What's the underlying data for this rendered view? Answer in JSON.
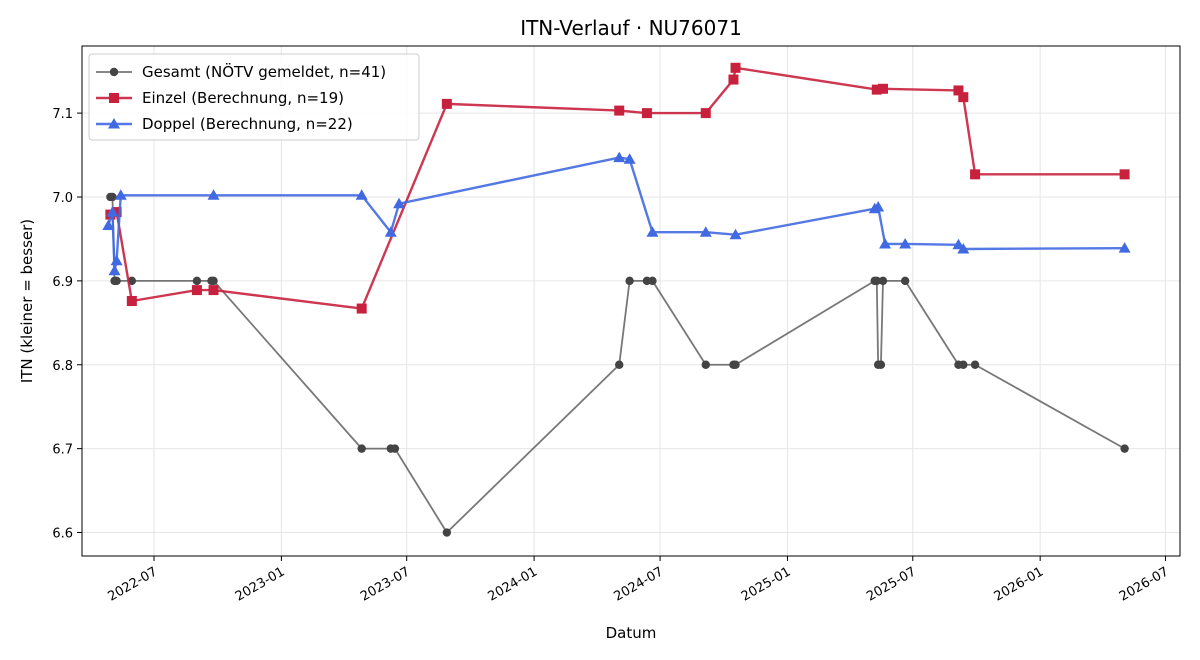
{
  "chart_data": {
    "type": "line",
    "title": "ITN-Verlauf · NU76071",
    "xlabel": "Datum",
    "ylabel": "ITN  (kleiner = besser)",
    "x_axis_type": "date",
    "xlim": [
      "2022-03-19",
      "2026-07-22"
    ],
    "ylim": [
      6.572,
      7.18
    ],
    "grid": true,
    "legend_position": "top-left",
    "x_ticks": [
      "2022-07",
      "2023-01",
      "2023-07",
      "2024-01",
      "2024-07",
      "2025-01",
      "2025-07",
      "2026-01",
      "2026-07"
    ],
    "y_ticks": [
      6.6,
      6.7,
      6.8,
      6.9,
      7.0,
      7.1
    ],
    "series": [
      {
        "name": "Gesamt (NÖTV gemeldet, n=41)",
        "color": "#444444",
        "marker": "circle",
        "points": [
          [
            "2022-04-29",
            7.0
          ],
          [
            "2022-05-02",
            7.0
          ],
          [
            "2022-05-05",
            6.9
          ],
          [
            "2022-05-08",
            6.9
          ],
          [
            "2022-05-30",
            6.9
          ],
          [
            "2022-09-01",
            6.9
          ],
          [
            "2022-09-22",
            6.9
          ],
          [
            "2022-09-25",
            6.9
          ],
          [
            "2023-04-27",
            6.7
          ],
          [
            "2023-06-08",
            6.7
          ],
          [
            "2023-06-14",
            6.7
          ],
          [
            "2023-08-28",
            6.6
          ],
          [
            "2024-05-03",
            6.8
          ],
          [
            "2024-05-18",
            6.9
          ],
          [
            "2024-06-12",
            6.9
          ],
          [
            "2024-06-20",
            6.9
          ],
          [
            "2024-09-05",
            6.8
          ],
          [
            "2024-10-15",
            6.8
          ],
          [
            "2024-10-18",
            6.8
          ],
          [
            "2025-05-07",
            6.9
          ],
          [
            "2025-05-10",
            6.9
          ],
          [
            "2025-05-12",
            6.8
          ],
          [
            "2025-05-16",
            6.8
          ],
          [
            "2025-05-19",
            6.9
          ],
          [
            "2025-06-20",
            6.9
          ],
          [
            "2025-09-05",
            6.8
          ],
          [
            "2025-09-12",
            6.8
          ],
          [
            "2025-09-29",
            6.8
          ],
          [
            "2026-05-03",
            6.7
          ]
        ]
      },
      {
        "name": "Einzel (Berechnung, n=19)",
        "color": "#c8213e",
        "marker": "square",
        "points": [
          [
            "2022-04-29",
            6.979
          ],
          [
            "2022-05-08",
            6.982
          ],
          [
            "2022-05-30",
            6.876
          ],
          [
            "2022-09-01",
            6.889
          ],
          [
            "2022-09-25",
            6.889
          ],
          [
            "2023-04-27",
            6.867
          ],
          [
            "2023-08-28",
            7.111
          ],
          [
            "2024-05-03",
            7.103
          ],
          [
            "2024-06-12",
            7.1
          ],
          [
            "2024-09-05",
            7.1
          ],
          [
            "2024-10-15",
            7.14
          ],
          [
            "2024-10-18",
            7.154
          ],
          [
            "2025-05-10",
            7.128
          ],
          [
            "2025-05-19",
            7.129
          ],
          [
            "2025-09-05",
            7.127
          ],
          [
            "2025-09-12",
            7.119
          ],
          [
            "2025-09-29",
            7.027
          ],
          [
            "2026-05-03",
            7.027
          ]
        ]
      },
      {
        "name": "Doppel (Berechnung, n=22)",
        "color": "#4169e1",
        "marker": "triangle",
        "points": [
          [
            "2022-04-26",
            6.966
          ],
          [
            "2022-05-02",
            6.982
          ],
          [
            "2022-05-05",
            6.912
          ],
          [
            "2022-05-08",
            6.924
          ],
          [
            "2022-05-14",
            7.002
          ],
          [
            "2022-09-25",
            7.002
          ],
          [
            "2023-04-27",
            7.002
          ],
          [
            "2023-06-08",
            6.958
          ],
          [
            "2023-06-20",
            6.992
          ],
          [
            "2024-05-03",
            7.047
          ],
          [
            "2024-05-18",
            7.045
          ],
          [
            "2024-06-20",
            6.958
          ],
          [
            "2024-09-05",
            6.958
          ],
          [
            "2024-10-18",
            6.955
          ],
          [
            "2025-05-07",
            6.986
          ],
          [
            "2025-05-12",
            6.988
          ],
          [
            "2025-05-22",
            6.944
          ],
          [
            "2025-06-20",
            6.944
          ],
          [
            "2025-09-05",
            6.943
          ],
          [
            "2025-09-12",
            6.938
          ],
          [
            "2026-05-03",
            6.939
          ]
        ]
      }
    ]
  }
}
